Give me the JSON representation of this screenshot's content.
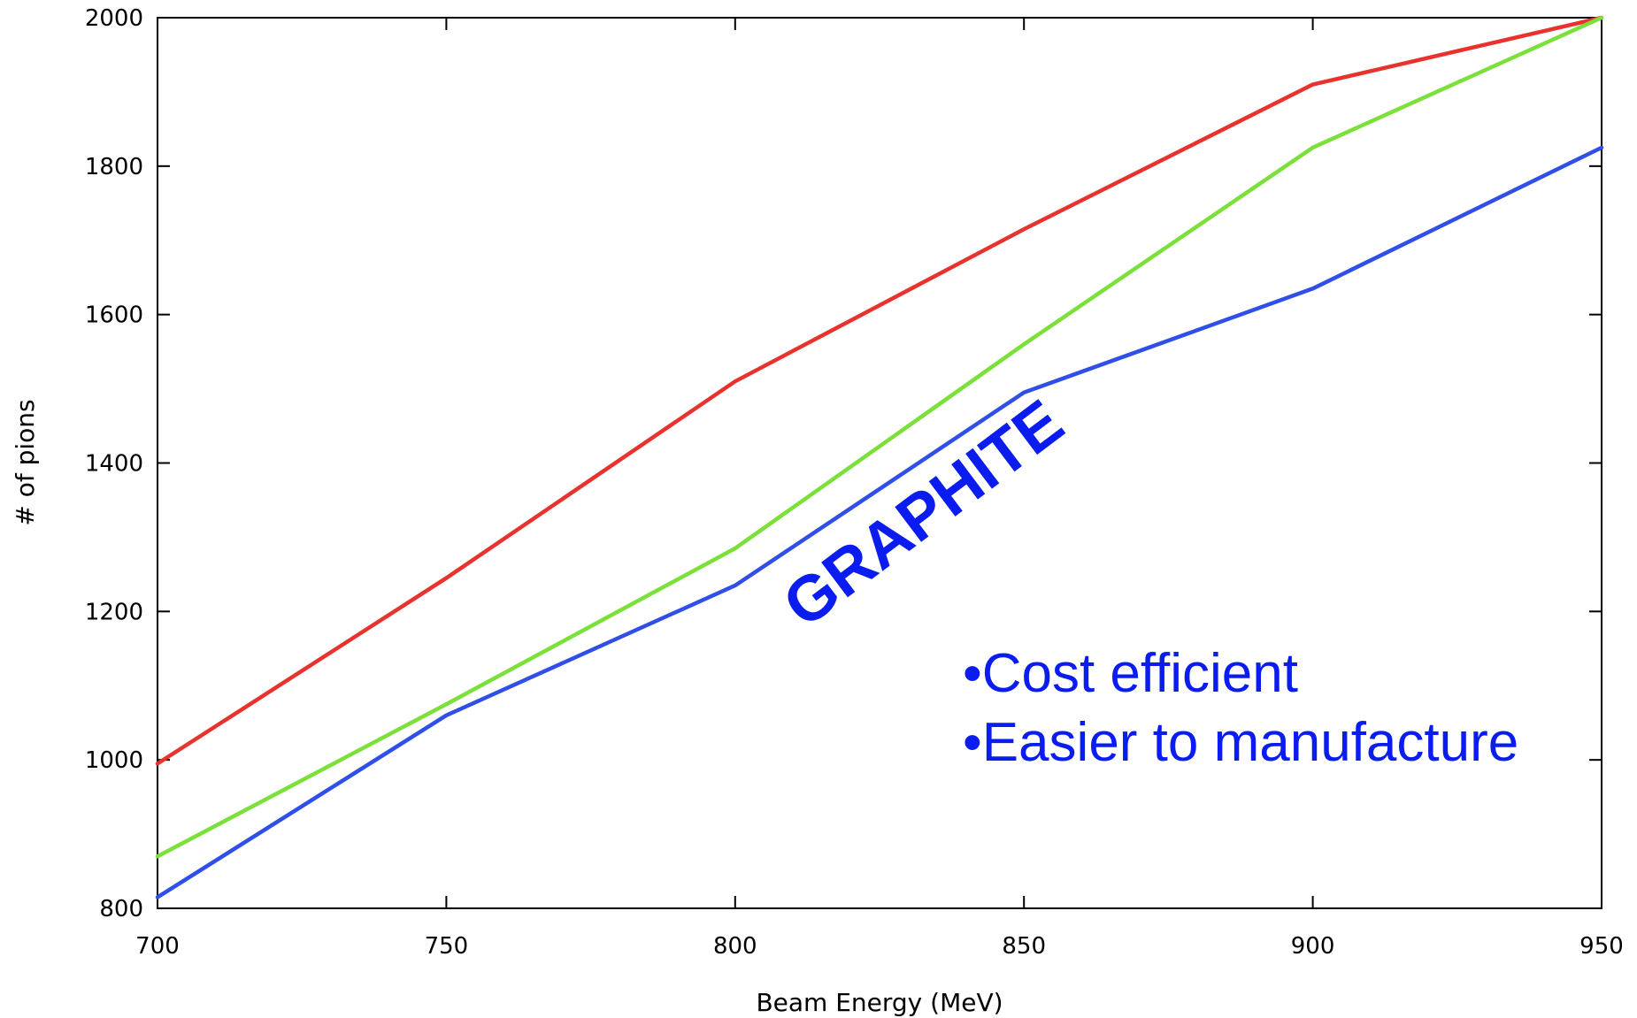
{
  "chart_data": {
    "type": "line",
    "title": "",
    "xlabel": "Beam Energy (MeV)",
    "ylabel": "# of pions",
    "xlim": [
      700,
      950
    ],
    "ylim": [
      800,
      2000
    ],
    "x_ticks": [
      "700",
      "750",
      "800",
      "850",
      "900",
      "950"
    ],
    "y_ticks": [
      "800",
      "1000",
      "1200",
      "1400",
      "1600",
      "1800",
      "2000"
    ],
    "x": [
      700,
      750,
      800,
      850,
      900,
      950
    ],
    "series": [
      {
        "color": "#e8322d",
        "values": [
          995,
          1245,
          1510,
          1715,
          1910,
          2000
        ]
      },
      {
        "color": "#7be03a",
        "values": [
          870,
          1075,
          1285,
          1560,
          1825,
          2000
        ]
      },
      {
        "color": "#2f4fe8",
        "values": [
          815,
          1060,
          1235,
          1495,
          1635,
          1825
        ]
      }
    ],
    "grid": false,
    "legend": "none"
  },
  "annotations": {
    "material": "GRAPHITE",
    "bullets": [
      "•Cost efficient",
      "•Easier to manufacture"
    ],
    "color": "#0a1cf0"
  }
}
